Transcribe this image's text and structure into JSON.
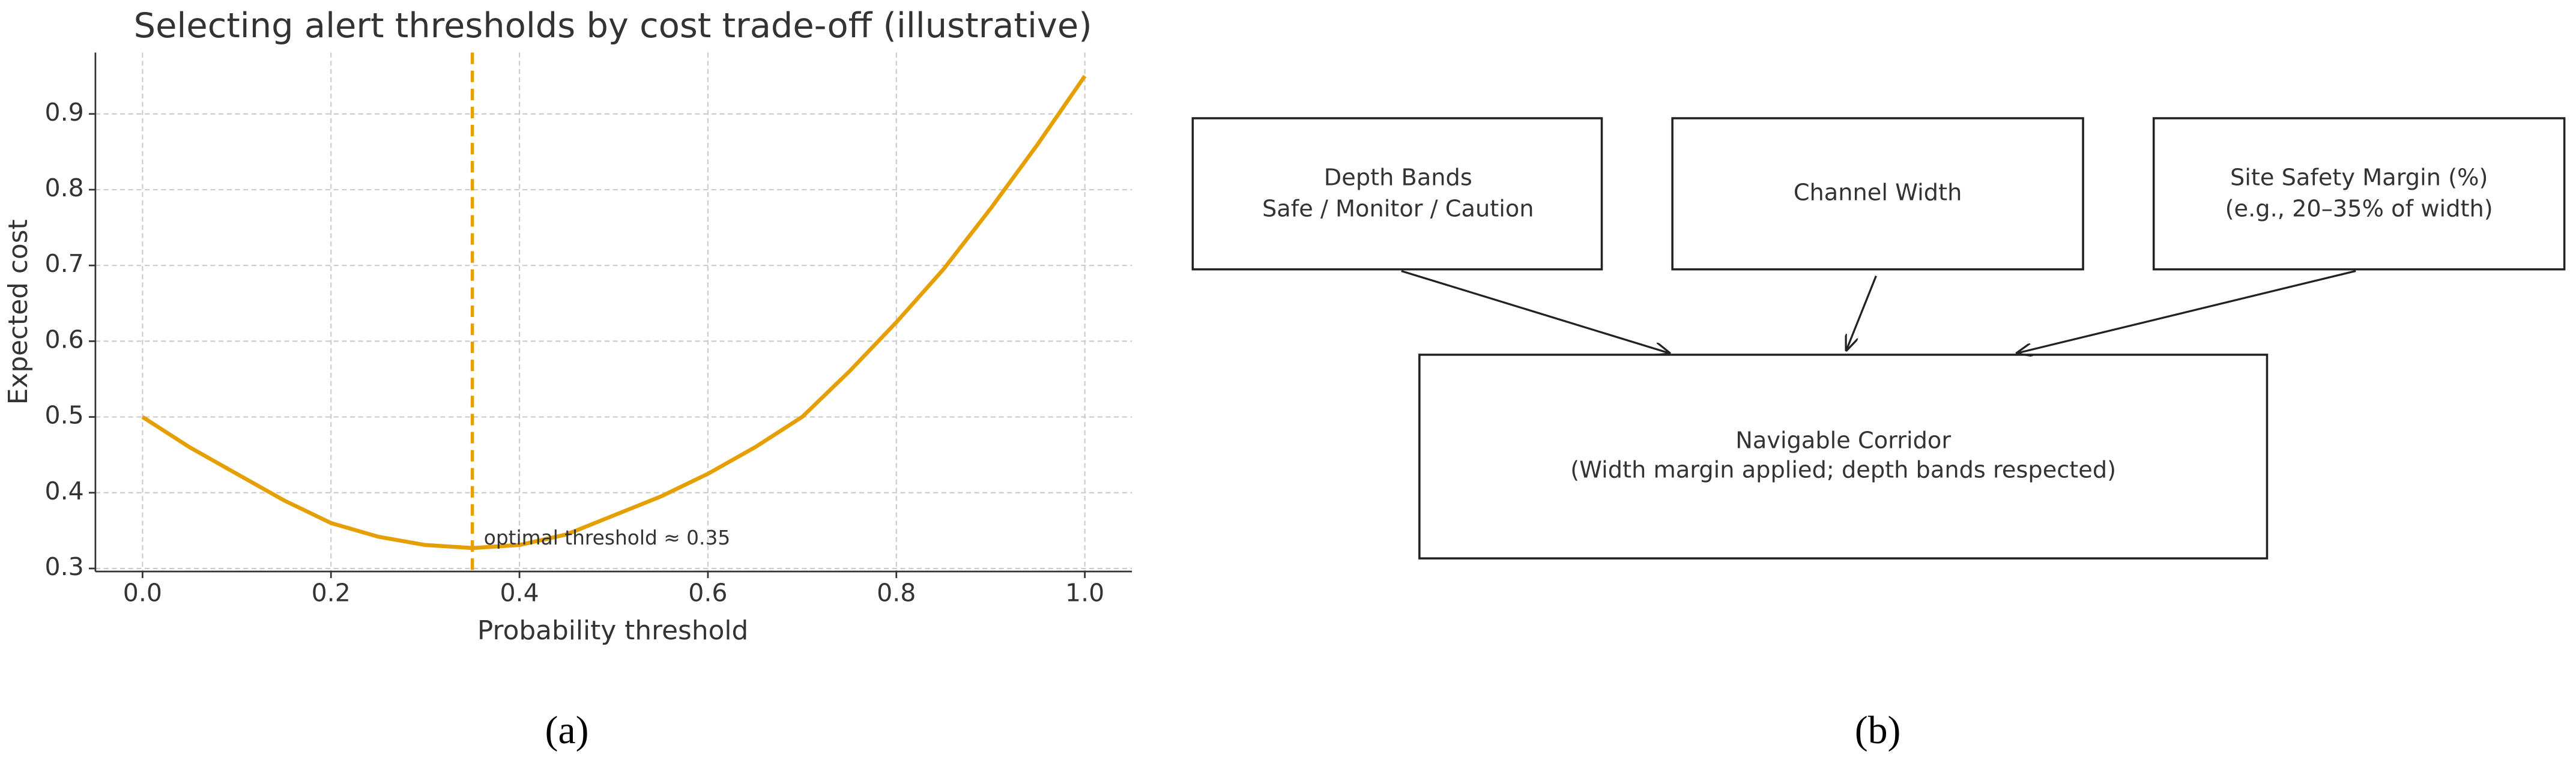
{
  "chart_data": {
    "type": "line",
    "title": "Selecting alert thresholds by cost trade-off (illustrative)",
    "x_label": "Probability threshold",
    "y_label": "Expected cost",
    "x": [
      0,
      0.05,
      0.1,
      0.15,
      0.2,
      0.25,
      0.3,
      0.35,
      0.4,
      0.45,
      0.5,
      0.55,
      0.6,
      0.65,
      0.7,
      0.75,
      0.8,
      0.85,
      0.9,
      0.95,
      1.0
    ],
    "values": [
      0.5,
      0.46,
      0.425,
      0.39,
      0.36,
      0.342,
      0.331,
      0.327,
      0.331,
      0.345,
      0.37,
      0.395,
      0.425,
      0.46,
      0.5,
      0.56,
      0.625,
      0.695,
      0.775,
      0.86,
      0.95
    ],
    "color": "#e69f00",
    "xlim": [
      -0.05,
      1.05
    ],
    "ylim": [
      0.296,
      0.981
    ],
    "xticks": [
      {
        "value": 0,
        "label": "0.0"
      },
      0.2,
      0.4,
      0.6,
      0.8,
      {
        "value": 1,
        "label": "1.0"
      }
    ],
    "yticks": [
      0.3,
      0.4,
      0.5,
      0.6,
      0.7,
      0.8,
      0.9
    ],
    "grid": true,
    "vline": 0.35,
    "annotation": "optimal threshold ≈ 0.35"
  },
  "diagram": {
    "nodes": [
      {
        "lines": [
          "Depth Bands",
          "Safe / Monitor / Caution"
        ]
      },
      {
        "lines": [
          "Channel Width"
        ]
      },
      {
        "lines": [
          "Site Safety Margin (%)",
          "(e.g., 20–35% of width)"
        ]
      },
      {
        "lines": [
          "Navigable Corridor",
          "(Width margin applied; depth bands respected)"
        ]
      }
    ]
  },
  "panel_labels": [
    "(a)",
    "(b)"
  ]
}
